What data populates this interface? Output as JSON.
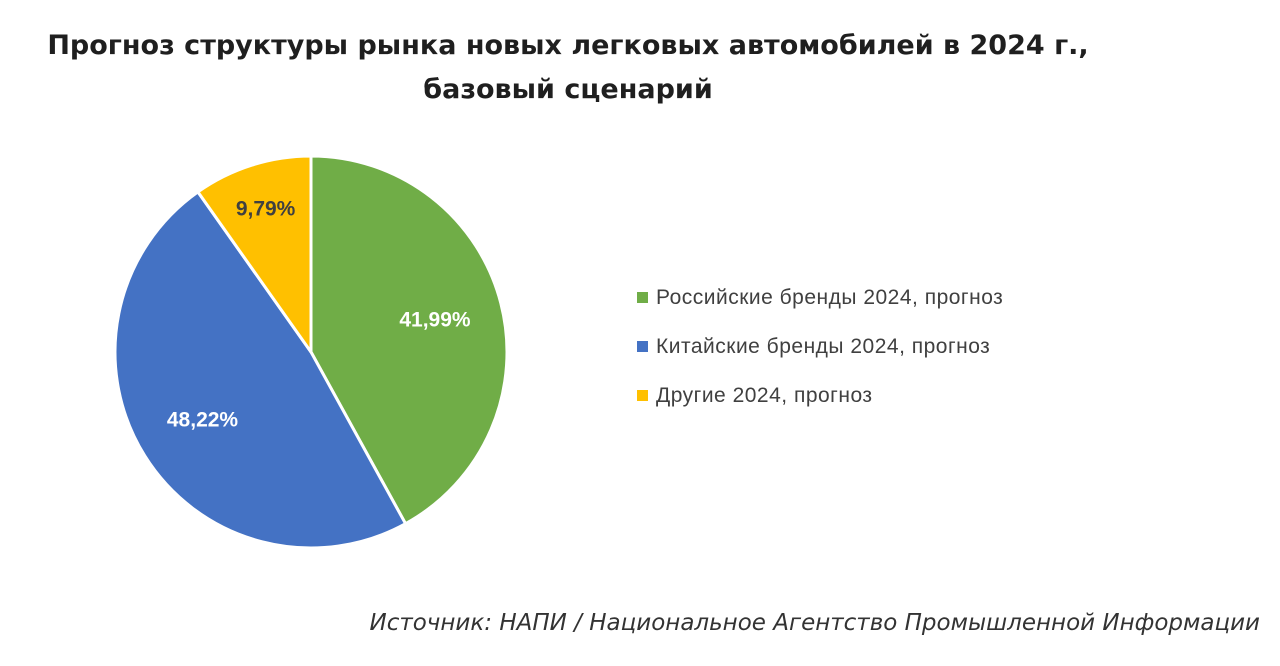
{
  "chart_data": {
    "type": "pie",
    "title": "Прогноз структуры рынка новых легковых автомобилей в 2024 г., базовый сценарий",
    "title_lines": [
      "Прогноз структуры рынка новых легковых автомобилей в 2024 г.,",
      "базовый сценарий"
    ],
    "categories": [
      "Российские бренды 2024, прогноз",
      "Китайские бренды 2024, прогноз",
      "Другие 2024, прогноз"
    ],
    "values": [
      41.99,
      48.22,
      9.79
    ],
    "value_labels": [
      "41,99%",
      "48,22%",
      "9,79%"
    ],
    "colors": [
      "#70AD47",
      "#4472C4",
      "#FFC000"
    ],
    "label_colors": [
      "#ffffff",
      "#ffffff",
      "#404040"
    ],
    "start_angle": "12 o'clock",
    "direction": "clockwise",
    "legend_position": "right"
  },
  "source": "Источник: НАПИ / Национальное Агентство Промышленной Информации"
}
